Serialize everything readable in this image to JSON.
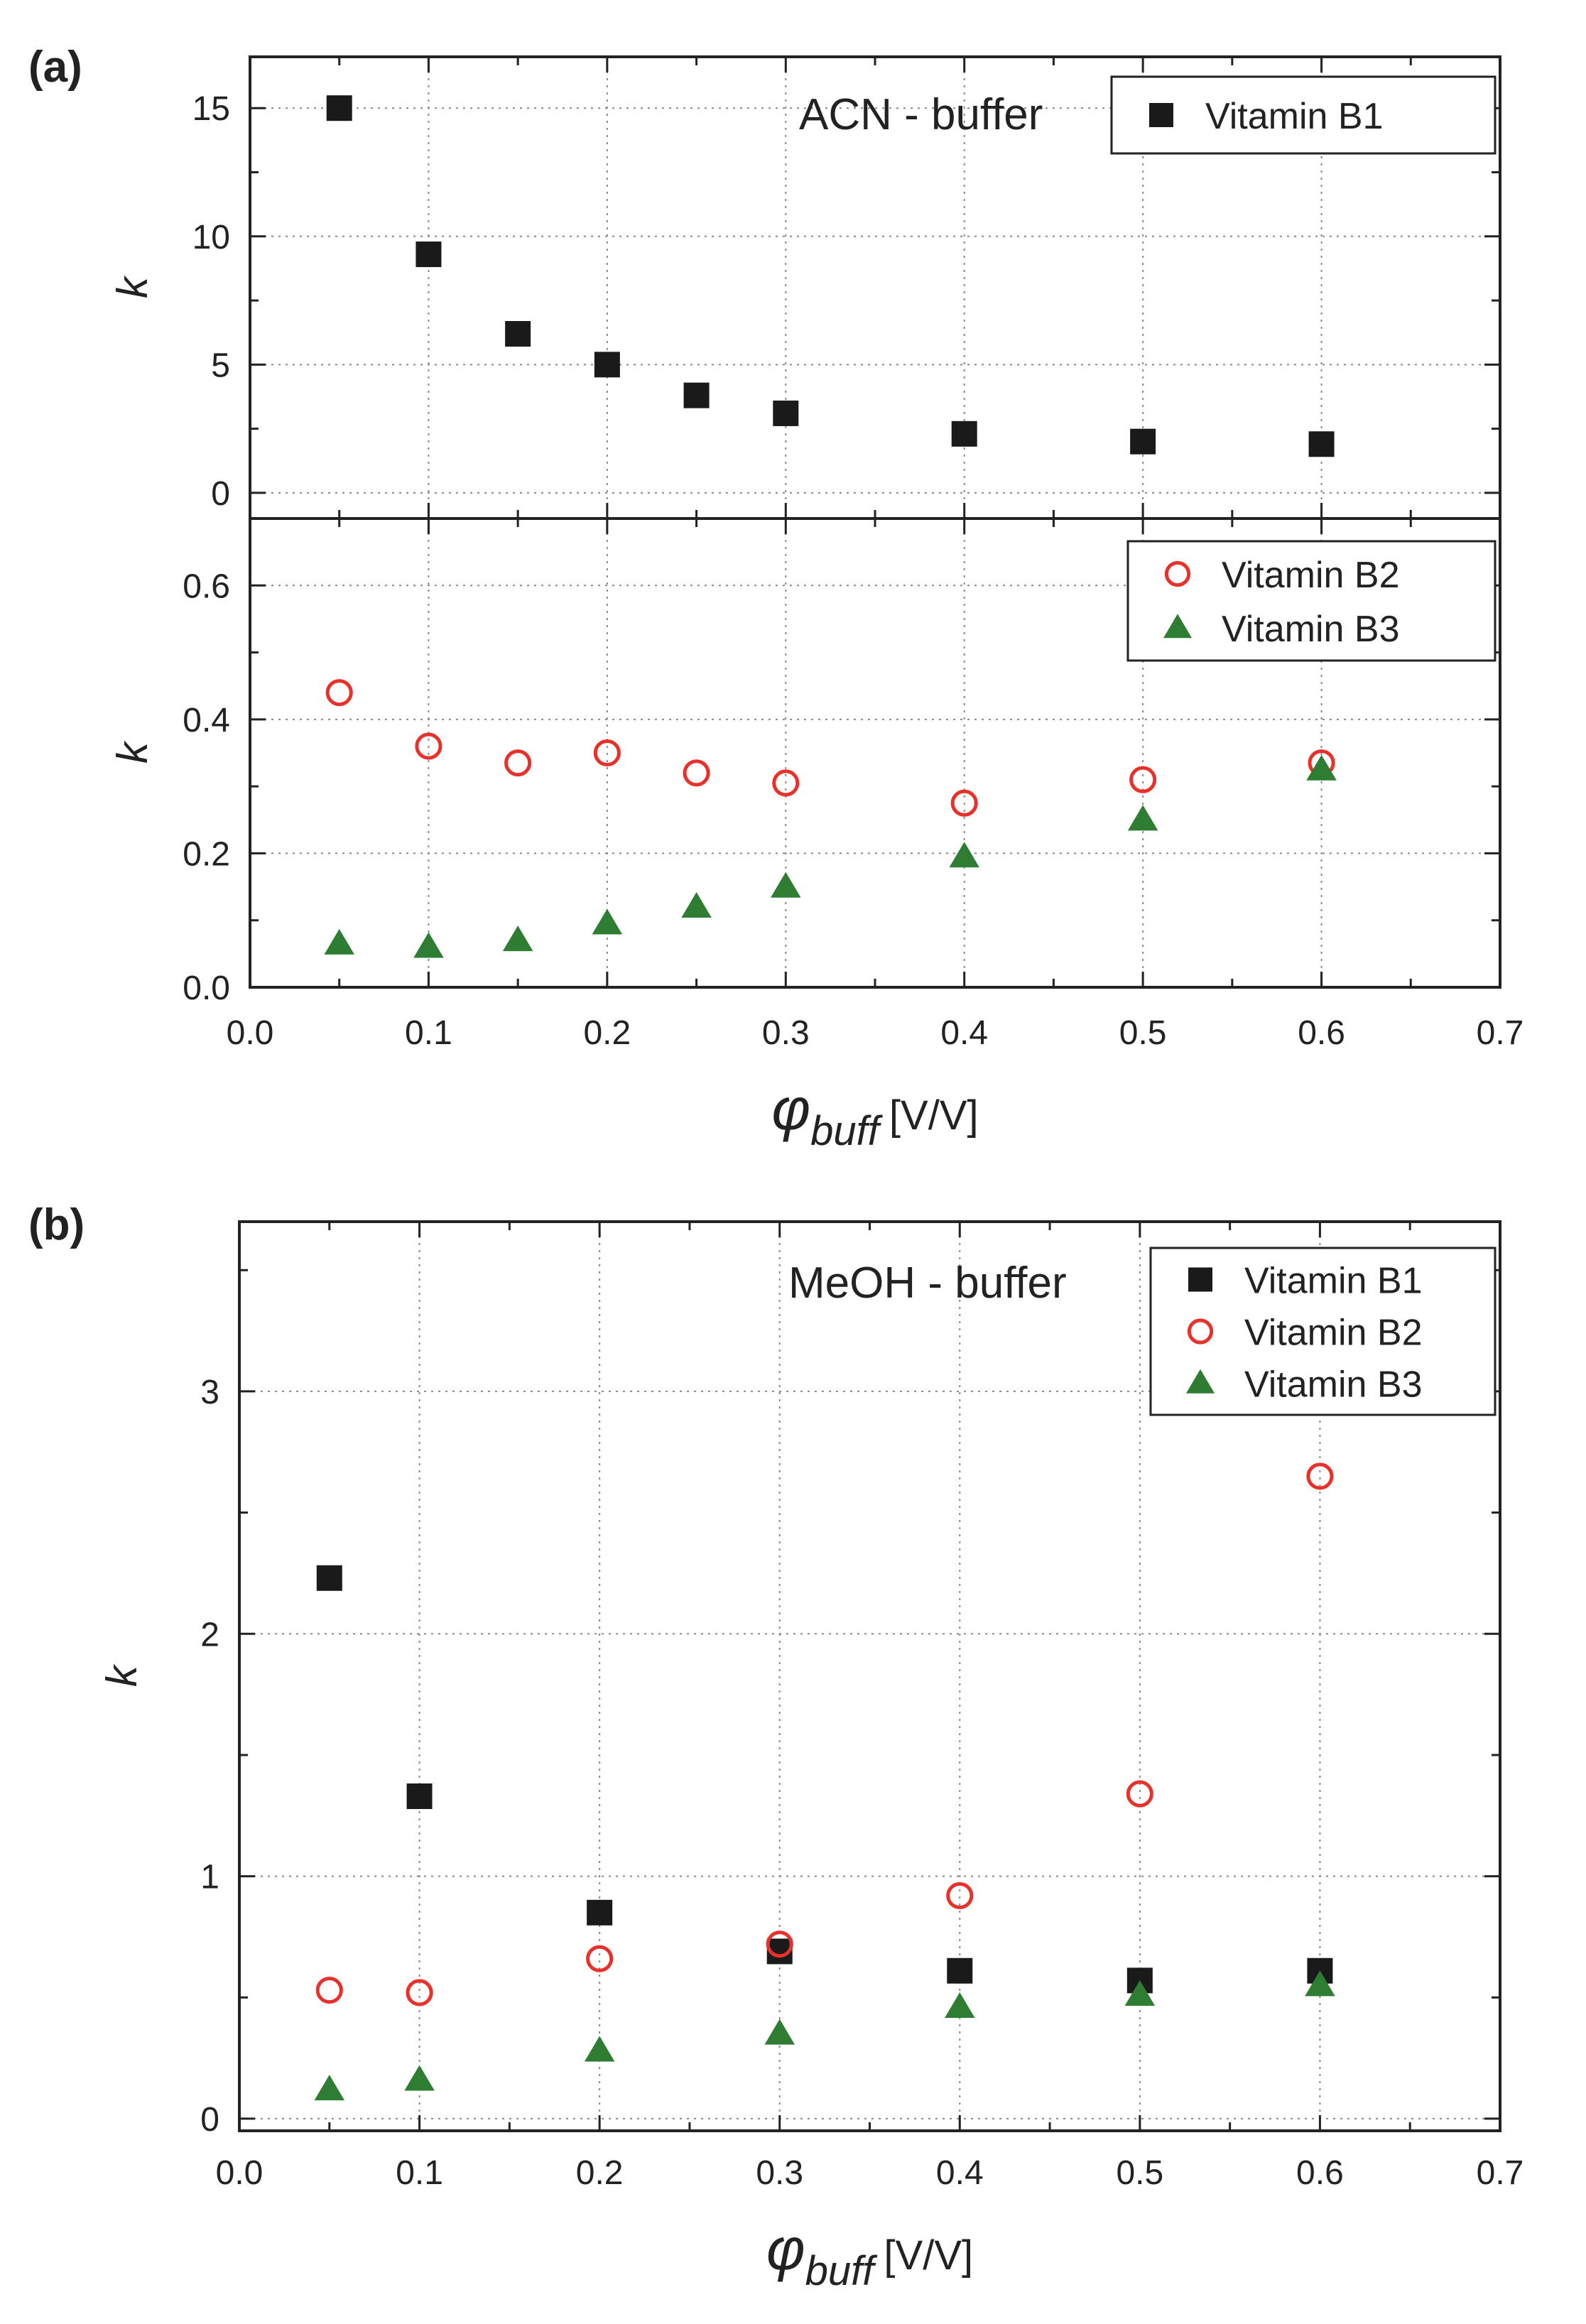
{
  "figure": {
    "panel_a_label": "(a)",
    "panel_b_label": "(b)"
  },
  "colors": {
    "b1": "#1a1a1a",
    "b2": "#e8312b",
    "b3": "#2e7d32",
    "grid": "#888888",
    "axis": "#222222"
  },
  "chart_data": [
    {
      "id": "a_top",
      "type": "scatter",
      "panel": "(a)",
      "annotation": "ACN - buffer",
      "ylabel": "k",
      "xlabel": "",
      "xlim": [
        0.0,
        0.7
      ],
      "ylim": [
        -1,
        17
      ],
      "yticks": [
        0,
        5,
        10,
        15
      ],
      "ytick_labels": [
        "0",
        "5",
        "10",
        "15"
      ],
      "xticks": [
        0.0,
        0.1,
        0.2,
        0.3,
        0.4,
        0.5,
        0.6,
        0.7
      ],
      "grid": true,
      "legend_position": "top-right",
      "series": [
        {
          "key": "b1",
          "name": "Vitamin B1",
          "marker": "square",
          "x": [
            0.05,
            0.1,
            0.15,
            0.2,
            0.25,
            0.3,
            0.4,
            0.5,
            0.6
          ],
          "y": [
            15.0,
            9.3,
            6.2,
            5.0,
            3.8,
            3.1,
            2.3,
            2.0,
            1.9
          ]
        }
      ]
    },
    {
      "id": "a_bottom",
      "type": "scatter",
      "panel": "(a)",
      "ylabel": "k",
      "xlabel_main": "φ",
      "xlabel_sub": "buff",
      "xlabel_unit": "[V/V]",
      "xlim": [
        0.0,
        0.7
      ],
      "ylim": [
        0.0,
        0.7
      ],
      "yticks": [
        0.0,
        0.2,
        0.4,
        0.6
      ],
      "ytick_labels": [
        "0.0",
        "0.2",
        "0.4",
        "0.6"
      ],
      "xticks": [
        0.0,
        0.1,
        0.2,
        0.3,
        0.4,
        0.5,
        0.6,
        0.7
      ],
      "xtick_labels": [
        "0.0",
        "0.1",
        "0.2",
        "0.3",
        "0.4",
        "0.5",
        "0.6",
        "0.7"
      ],
      "grid": true,
      "legend_position": "top-right",
      "series": [
        {
          "key": "b2",
          "name": "Vitamin B2",
          "marker": "open-circle",
          "x": [
            0.05,
            0.1,
            0.15,
            0.2,
            0.25,
            0.3,
            0.4,
            0.5,
            0.6
          ],
          "y": [
            0.44,
            0.36,
            0.335,
            0.35,
            0.32,
            0.305,
            0.275,
            0.31,
            0.335
          ]
        },
        {
          "key": "b3",
          "name": "Vitamin B3",
          "marker": "triangle",
          "x": [
            0.05,
            0.1,
            0.15,
            0.2,
            0.25,
            0.3,
            0.4,
            0.5,
            0.6
          ],
          "y": [
            0.065,
            0.06,
            0.07,
            0.095,
            0.12,
            0.15,
            0.195,
            0.25,
            0.325
          ]
        }
      ]
    },
    {
      "id": "b",
      "type": "scatter",
      "panel": "(b)",
      "annotation": "MeOH - buffer",
      "ylabel": "k",
      "xlabel_main": "φ",
      "xlabel_sub": "buff",
      "xlabel_unit": "[V/V]",
      "xlim": [
        0.0,
        0.7
      ],
      "ylim": [
        -0.05,
        3.7
      ],
      "yticks": [
        0,
        1,
        2,
        3
      ],
      "ytick_labels": [
        "0",
        "1",
        "2",
        "3"
      ],
      "xticks": [
        0.0,
        0.1,
        0.2,
        0.3,
        0.4,
        0.5,
        0.6,
        0.7
      ],
      "xtick_labels": [
        "0.0",
        "0.1",
        "0.2",
        "0.3",
        "0.4",
        "0.5",
        "0.6",
        "0.7"
      ],
      "grid": true,
      "legend_position": "top-right",
      "series": [
        {
          "key": "b1",
          "name": "Vitamin B1",
          "marker": "square",
          "x": [
            0.05,
            0.1,
            0.2,
            0.3,
            0.4,
            0.5,
            0.6
          ],
          "y": [
            2.23,
            1.33,
            0.85,
            0.69,
            0.61,
            0.57,
            0.61
          ]
        },
        {
          "key": "b2",
          "name": "Vitamin B2",
          "marker": "open-circle",
          "x": [
            0.05,
            0.1,
            0.2,
            0.3,
            0.4,
            0.5,
            0.6
          ],
          "y": [
            0.53,
            0.52,
            0.66,
            0.72,
            0.92,
            1.34,
            2.65
          ]
        },
        {
          "key": "b3",
          "name": "Vitamin B3",
          "marker": "triangle",
          "x": [
            0.05,
            0.1,
            0.2,
            0.3,
            0.4,
            0.5,
            0.6
          ],
          "y": [
            0.12,
            0.16,
            0.28,
            0.35,
            0.46,
            0.51,
            0.55
          ]
        }
      ]
    }
  ]
}
